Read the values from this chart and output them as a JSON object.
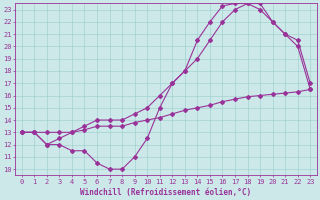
{
  "background_color": "#cce8e8",
  "grid_color": "#99cccc",
  "line_color": "#993399",
  "marker": "D",
  "markersize": 2,
  "linewidth": 0.8,
  "xlabel": "Windchill (Refroidissement éolien,°C)",
  "xlabel_fontsize": 5.5,
  "tick_fontsize": 5,
  "xlim": [
    -0.5,
    23.5
  ],
  "ylim": [
    9.5,
    23.5
  ],
  "xticks": [
    0,
    1,
    2,
    3,
    4,
    5,
    6,
    7,
    8,
    9,
    10,
    11,
    12,
    13,
    14,
    15,
    16,
    17,
    18,
    19,
    20,
    21,
    22,
    23
  ],
  "yticks": [
    10,
    11,
    12,
    13,
    14,
    15,
    16,
    17,
    18,
    19,
    20,
    21,
    22,
    23
  ],
  "curve1_x": [
    0,
    1,
    2,
    3,
    4,
    5,
    6,
    7,
    8,
    9,
    10,
    11,
    12,
    13,
    14,
    15,
    16,
    17,
    18,
    19,
    20,
    21,
    22,
    23
  ],
  "curve1_y": [
    13,
    13,
    12,
    12,
    11.5,
    11.5,
    10.5,
    10,
    10,
    11,
    12.5,
    15,
    17,
    18,
    20.5,
    22,
    23.3,
    23.5,
    23.5,
    23,
    22,
    21,
    20,
    16.5
  ],
  "curve2_x": [
    0,
    1,
    2,
    3,
    4,
    5,
    6,
    7,
    8,
    9,
    10,
    11,
    12,
    13,
    14,
    15,
    16,
    17,
    18,
    19,
    20,
    21,
    22,
    23
  ],
  "curve2_y": [
    13,
    13,
    12,
    12.5,
    13,
    13.5,
    14,
    14,
    14,
    14.5,
    15,
    16,
    17,
    18,
    19,
    20.5,
    22,
    23,
    23.5,
    23.5,
    22,
    21,
    20.5,
    17
  ],
  "curve3_x": [
    0,
    1,
    2,
    3,
    4,
    5,
    6,
    7,
    8,
    9,
    10,
    11,
    12,
    13,
    14,
    15,
    16,
    17,
    18,
    19,
    20,
    21,
    22,
    23
  ],
  "curve3_y": [
    13,
    13,
    13,
    13,
    13,
    13.2,
    13.5,
    13.5,
    13.5,
    13.8,
    14,
    14.2,
    14.5,
    14.8,
    15,
    15.2,
    15.5,
    15.7,
    15.9,
    16,
    16.1,
    16.2,
    16.3,
    16.5
  ]
}
